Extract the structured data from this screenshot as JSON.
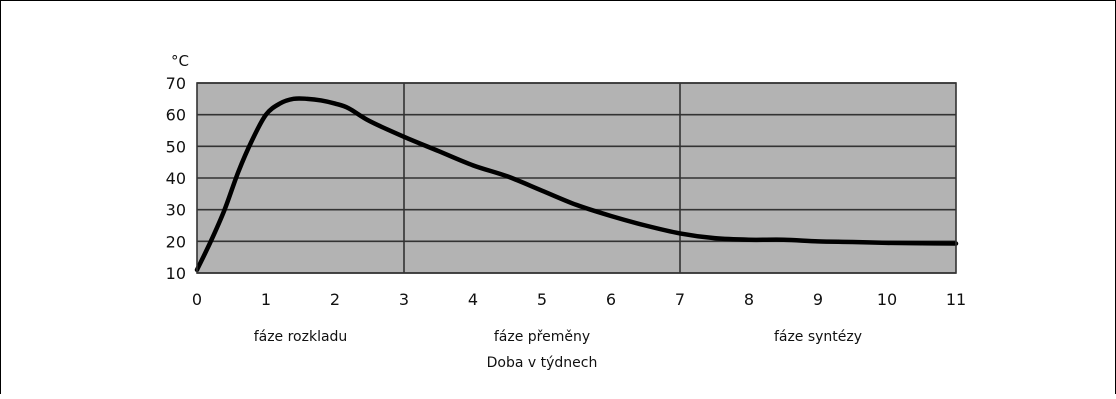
{
  "chart_data": {
    "type": "line",
    "unit_label": "°C",
    "xlabel": "Doba v týdnech",
    "xlim": [
      0,
      11
    ],
    "ylim": [
      10,
      70
    ],
    "x_ticks": [
      "0",
      "1",
      "2",
      "3",
      "4",
      "5",
      "6",
      "7",
      "8",
      "9",
      "10",
      "11"
    ],
    "y_ticks": [
      "10",
      "20",
      "30",
      "40",
      "50",
      "60",
      "70"
    ],
    "grid": "horizontal",
    "background": "#b3b3b3",
    "line_color": "#000000",
    "phase_boundaries": [
      3,
      7
    ],
    "phases": [
      {
        "label": "fáze rozkladu",
        "center": 1.5
      },
      {
        "label": "fáze přeměny",
        "center": 5
      },
      {
        "label": "fáze syntézy",
        "center": 9
      }
    ],
    "series": [
      {
        "x": [
          0,
          0.2,
          0.4,
          0.6,
          0.8,
          1.0,
          1.2,
          1.4,
          1.6,
          1.8,
          2.0,
          2.2,
          2.5,
          3.0,
          3.5,
          4.0,
          4.5,
          5.0,
          5.5,
          6.0,
          6.5,
          7.0,
          7.5,
          8.0,
          8.5,
          9.0,
          9.5,
          10.0,
          10.5,
          11.0
        ],
        "y": [
          11,
          20,
          30,
          42,
          52,
          60,
          63.5,
          65,
          65,
          64.5,
          63.5,
          62,
          58,
          53,
          48.5,
          44,
          40.5,
          36,
          31.5,
          28,
          25,
          22.5,
          21,
          20.5,
          20.5,
          20,
          19.8,
          19.5,
          19.4,
          19.3
        ]
      }
    ]
  }
}
